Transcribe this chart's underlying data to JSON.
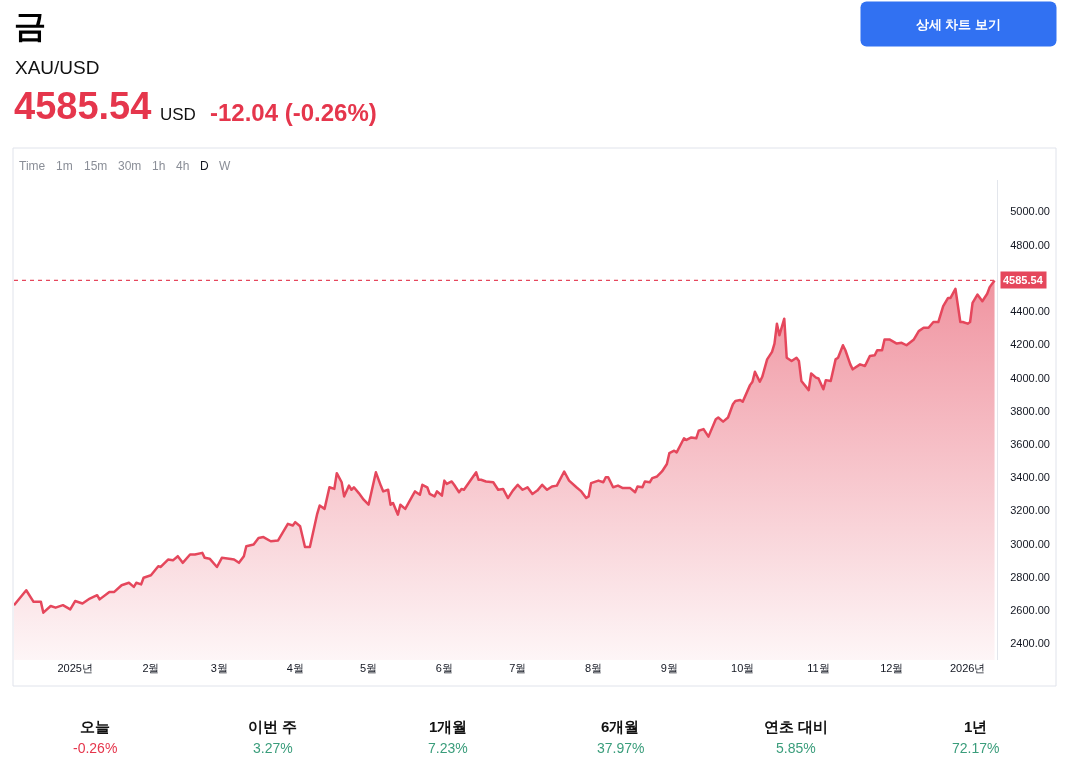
{
  "chart_data": {
    "type": "area",
    "title": "금",
    "subtitle": "XAU/USD",
    "annotations": [
      "4585.54",
      "USD",
      "-12.04 (-0.26%)",
      "상세 차트 보기",
      "Time",
      "1m",
      "15m",
      "30m",
      "1h",
      "4h",
      "D",
      "W",
      "오늘",
      "-0.26%",
      "이번 주",
      "3.27%",
      "1개월",
      "7.23%",
      "6개월",
      "37.97%",
      "연초 대비",
      "5.85%",
      "1년",
      "72.17%"
    ],
    "x": [
      "2024-12-07",
      "2024-12-12",
      "2024-12-15",
      "2024-12-18",
      "2024-12-19",
      "2024-12-22",
      "2024-12-24",
      "2024-12-27",
      "2024-12-30",
      "2025-01-01",
      "2025-01-04",
      "2025-01-07",
      "2025-01-10",
      "2025-01-11",
      "2025-01-15",
      "2025-01-17",
      "2025-01-20",
      "2025-01-23",
      "2025-01-25",
      "2025-01-26",
      "2025-01-28",
      "2025-01-29",
      "2025-02-01",
      "2025-02-04",
      "2025-02-05",
      "2025-02-08",
      "2025-02-10",
      "2025-02-12",
      "2025-02-14",
      "2025-02-17",
      "2025-02-19",
      "2025-02-22",
      "2025-02-23",
      "2025-02-25",
      "2025-02-28",
      "2025-03-02",
      "2025-03-05",
      "2025-03-07",
      "2025-03-09",
      "2025-03-11",
      "2025-03-12",
      "2025-03-15",
      "2025-03-17",
      "2025-03-19",
      "2025-03-22",
      "2025-03-25",
      "2025-03-29",
      "2025-03-31",
      "2025-04-01",
      "2025-04-03",
      "2025-04-05",
      "2025-04-07",
      "2025-04-10",
      "2025-04-11",
      "2025-04-13",
      "2025-04-15",
      "2025-04-17",
      "2025-04-18",
      "2025-04-20",
      "2025-04-21",
      "2025-04-23",
      "2025-04-24",
      "2025-04-25",
      "2025-04-27",
      "2025-04-29",
      "2025-05-01",
      "2025-05-04",
      "2025-05-06",
      "2025-05-07",
      "2025-05-09",
      "2025-05-10",
      "2025-05-11",
      "2025-05-13",
      "2025-05-14",
      "2025-05-16",
      "2025-05-19",
      "2025-05-20",
      "2025-05-22",
      "2025-05-23",
      "2025-05-25",
      "2025-05-26",
      "2025-05-28",
      "2025-05-29",
      "2025-05-31",
      "2025-06-01",
      "2025-06-02",
      "2025-06-04",
      "2025-06-05",
      "2025-06-07",
      "2025-06-08",
      "2025-06-09",
      "2025-06-14",
      "2025-06-15",
      "2025-06-16",
      "2025-06-18",
      "2025-06-21",
      "2025-06-23",
      "2025-06-25",
      "2025-06-27",
      "2025-06-29",
      "2025-07-01",
      "2025-07-03",
      "2025-07-05",
      "2025-07-07",
      "2025-07-09",
      "2025-07-11",
      "2025-07-13",
      "2025-07-15",
      "2025-07-17",
      "2025-07-20",
      "2025-07-22",
      "2025-07-25",
      "2025-07-27",
      "2025-07-29",
      "2025-07-30",
      "2025-07-31",
      "2025-08-03",
      "2025-08-05",
      "2025-08-06",
      "2025-08-07",
      "2025-08-09",
      "2025-08-11",
      "2025-08-13",
      "2025-08-16",
      "2025-08-18",
      "2025-08-19",
      "2025-08-21",
      "2025-08-22",
      "2025-08-24",
      "2025-08-25",
      "2025-08-27",
      "2025-08-29",
      "2025-08-31",
      "2025-09-01",
      "2025-09-03",
      "2025-09-04",
      "2025-09-07",
      "2025-09-08",
      "2025-09-10",
      "2025-09-12",
      "2025-09-13",
      "2025-09-15",
      "2025-09-17",
      "2025-09-20",
      "2025-09-21",
      "2025-09-23",
      "2025-09-25",
      "2025-09-27",
      "2025-09-28",
      "2025-09-30",
      "2025-10-01",
      "2025-10-04",
      "2025-10-05",
      "2025-10-06",
      "2025-10-08",
      "2025-10-09",
      "2025-10-11",
      "2025-10-13",
      "2025-10-14",
      "2025-10-15",
      "2025-10-16",
      "2025-10-18",
      "2025-10-19",
      "2025-10-21",
      "2025-10-23",
      "2025-10-24",
      "2025-10-25",
      "2025-10-28",
      "2025-10-29",
      "2025-10-31",
      "2025-11-01",
      "2025-11-03",
      "2025-11-04",
      "2025-11-06",
      "2025-11-08",
      "2025-11-09",
      "2025-11-11",
      "2025-11-12",
      "2025-11-14",
      "2025-11-15",
      "2025-11-18",
      "2025-11-20",
      "2025-11-22",
      "2025-11-24",
      "2025-11-25",
      "2025-11-27",
      "2025-11-28",
      "2025-11-30",
      "2025-12-03",
      "2025-12-05",
      "2025-12-07",
      "2025-12-10",
      "2025-12-12",
      "2025-12-14",
      "2025-12-16",
      "2025-12-18",
      "2025-12-20",
      "2025-12-22",
      "2025-12-24",
      "2025-12-25",
      "2025-12-27",
      "2025-12-29",
      "2025-12-30",
      "2026-01-01",
      "2026-01-02",
      "2026-01-03",
      "2026-01-05",
      "2026-01-07",
      "2026-01-09",
      "2026-01-10",
      "2026-01-12"
    ],
    "values": [
      2630,
      2720,
      2650,
      2650,
      2585,
      2625,
      2615,
      2630,
      2605,
      2655,
      2640,
      2670,
      2690,
      2665,
      2710,
      2710,
      2750,
      2765,
      2740,
      2765,
      2755,
      2795,
      2810,
      2865,
      2860,
      2905,
      2900,
      2925,
      2885,
      2935,
      2935,
      2945,
      2915,
      2910,
      2860,
      2915,
      2910,
      2905,
      2885,
      2925,
      2985,
      2995,
      3035,
      3040,
      3015,
      3020,
      3120,
      3110,
      3130,
      3105,
      2980,
      2980,
      3180,
      3230,
      3210,
      3340,
      3330,
      3425,
      3370,
      3285,
      3350,
      3325,
      3340,
      3305,
      3265,
      3235,
      3430,
      3350,
      3315,
      3325,
      3235,
      3245,
      3175,
      3235,
      3210,
      3290,
      3315,
      3295,
      3355,
      3340,
      3300,
      3285,
      3315,
      3290,
      3380,
      3360,
      3375,
      3355,
      3310,
      3330,
      3325,
      3430,
      3385,
      3385,
      3375,
      3370,
      3325,
      3330,
      3275,
      3320,
      3355,
      3325,
      3340,
      3300,
      3320,
      3355,
      3325,
      3345,
      3350,
      3435,
      3380,
      3340,
      3315,
      3275,
      3285,
      3365,
      3380,
      3370,
      3400,
      3400,
      3340,
      3350,
      3335,
      3335,
      3310,
      3345,
      3340,
      3375,
      3370,
      3395,
      3405,
      3435,
      3480,
      3545,
      3560,
      3550,
      3635,
      3625,
      3640,
      3635,
      3680,
      3690,
      3645,
      3750,
      3760,
      3735,
      3760,
      3840,
      3860,
      3865,
      3855,
      3955,
      3975,
      4035,
      3975,
      4005,
      4110,
      4155,
      4205,
      4325,
      4255,
      4355,
      4120,
      4100,
      4120,
      4100,
      3980,
      3925,
      4025,
      4000,
      3995,
      3930,
      3985,
      3980,
      4110,
      4120,
      4195,
      4165,
      4080,
      4050,
      4080,
      4070,
      4130,
      4135,
      4165,
      4165,
      4230,
      4230,
      4205,
      4210,
      4195,
      4230,
      4280,
      4300,
      4300,
      4335,
      4335,
      4430,
      4480,
      4480,
      4535,
      4335,
      4335,
      4325,
      4335,
      4450,
      4500,
      4460,
      4505,
      4545,
      4585
    ],
    "color": "#e5475c",
    "xlim": [
      "2024-12-07",
      "2026-01-13"
    ],
    "xticks": [
      {
        "value": "2025-01-01",
        "label": "2025년"
      },
      {
        "value": "2025-02-01",
        "label": "2월"
      },
      {
        "value": "2025-03-01",
        "label": "3월"
      },
      {
        "value": "2025-04-01",
        "label": "4월"
      },
      {
        "value": "2025-05-01",
        "label": "5월"
      },
      {
        "value": "2025-06-01",
        "label": "6월"
      },
      {
        "value": "2025-07-01",
        "label": "7월"
      },
      {
        "value": "2025-08-01",
        "label": "8월"
      },
      {
        "value": "2025-09-01",
        "label": "9월"
      },
      {
        "value": "2025-10-01",
        "label": "10월"
      },
      {
        "value": "2025-11-01",
        "label": "11월"
      },
      {
        "value": "2025-12-01",
        "label": "12월"
      },
      {
        "value": "2026-01-01",
        "label": "2026년"
      }
    ],
    "ylim": [
      2300,
      5190
    ],
    "yticks": [
      {
        "value": 2400,
        "label": "2400.00"
      },
      {
        "value": 2600,
        "label": "2600.00"
      },
      {
        "value": 2800,
        "label": "2800.00"
      },
      {
        "value": 3000,
        "label": "3000.00"
      },
      {
        "value": 3200,
        "label": "3200.00"
      },
      {
        "value": 3400,
        "label": "3400.00"
      },
      {
        "value": 3600,
        "label": "3600.00"
      },
      {
        "value": 3800,
        "label": "3800.00"
      },
      {
        "value": 4000,
        "label": "4000.00"
      },
      {
        "value": 4200,
        "label": "4200.00"
      },
      {
        "value": 4400,
        "label": "4400.00"
      },
      {
        "value": 4800,
        "label": "4800.00"
      },
      {
        "value": 5000,
        "label": "5000.00"
      }
    ],
    "ref_lines": [
      {
        "axis": "y",
        "value": 4585.54,
        "label": "4585.54",
        "color": "#e5475c",
        "line_style": "dashed"
      }
    ]
  }
}
